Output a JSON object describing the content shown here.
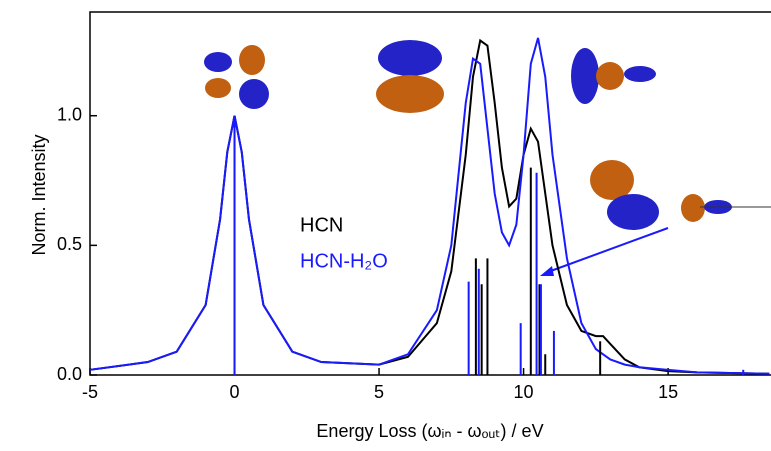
{
  "chart_data": {
    "type": "line",
    "x_label": "Energy Loss (ωᵢₙ - ωₒᵤₜ) / eV",
    "y_label": "Norm. Intensity",
    "xlim": [
      -5,
      18.56
    ],
    "ylim": [
      0,
      1.4
    ],
    "xticks": [
      -5,
      0,
      5,
      10,
      15
    ],
    "yticks": [
      {
        "value": 0,
        "label": "0.0"
      },
      {
        "value": 0.5,
        "label": "0.5"
      },
      {
        "value": 1,
        "label": "1.0"
      }
    ],
    "x": [
      -5,
      -3,
      -2,
      -1,
      -0.5,
      -0.25,
      0,
      0.25,
      0.5,
      1,
      2,
      3,
      5,
      6,
      7,
      7.5,
      8,
      8.25,
      8.5,
      8.75,
      9,
      9.25,
      9.5,
      9.75,
      10,
      10.25,
      10.5,
      10.75,
      11,
      11.5,
      12,
      12.5,
      12.75,
      13,
      13.5,
      14,
      15,
      16,
      18.5
    ],
    "series": [
      {
        "name": "HCN",
        "color": "#000000",
        "values": [
          0.02,
          0.05,
          0.09,
          0.27,
          0.6,
          0.86,
          1.0,
          0.86,
          0.6,
          0.27,
          0.09,
          0.05,
          0.04,
          0.07,
          0.2,
          0.4,
          0.85,
          1.15,
          1.29,
          1.27,
          1.05,
          0.8,
          0.65,
          0.68,
          0.85,
          0.95,
          0.9,
          0.7,
          0.5,
          0.27,
          0.17,
          0.15,
          0.15,
          0.12,
          0.06,
          0.03,
          0.015,
          0.01,
          0.005
        ]
      },
      {
        "name": "HCN-H₂O",
        "color": "#1a1aff",
        "values": [
          0.02,
          0.05,
          0.09,
          0.27,
          0.6,
          0.86,
          1.0,
          0.86,
          0.6,
          0.27,
          0.09,
          0.05,
          0.04,
          0.08,
          0.25,
          0.5,
          1.05,
          1.22,
          1.2,
          0.95,
          0.7,
          0.55,
          0.5,
          0.58,
          0.85,
          1.2,
          1.3,
          1.15,
          0.85,
          0.45,
          0.2,
          0.1,
          0.08,
          0.06,
          0.04,
          0.03,
          0.02,
          0.01,
          0.005
        ]
      }
    ],
    "sticks": [
      {
        "color": "#000000",
        "x": [
          0,
          8.35,
          8.55,
          8.75,
          10.25,
          10.55,
          10.75,
          12.65
        ],
        "values": [
          1.0,
          0.45,
          0.35,
          0.45,
          0.8,
          0.35,
          0.08,
          0.13
        ]
      },
      {
        "color": "#1a1aff",
        "x": [
          0,
          8.1,
          8.45,
          9.9,
          10.45,
          10.6,
          11.05,
          17.6
        ],
        "values": [
          1.0,
          0.36,
          0.41,
          0.2,
          0.78,
          0.35,
          0.17,
          0.02
        ]
      }
    ]
  }
}
